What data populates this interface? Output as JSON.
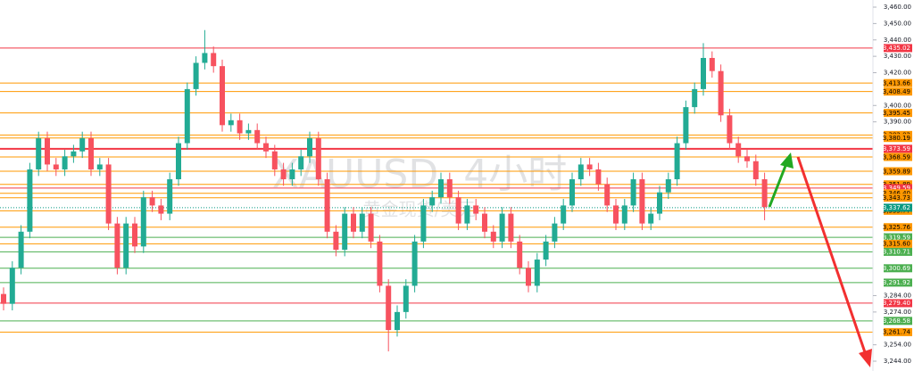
{
  "chart_data": {
    "type": "candlestick",
    "watermark": "XAUUSD, 4小时",
    "watermark_sub": "黄金现货/美元",
    "ylim": [
      3244,
      3460
    ],
    "yticks": [
      {
        "value": 3460,
        "label": "3,460.00"
      },
      {
        "value": 3450,
        "label": "3,450.00"
      },
      {
        "value": 3440,
        "label": "3,440.00"
      },
      {
        "value": 3430,
        "label": "3,430.00"
      },
      {
        "value": 3420,
        "label": "3,420.00"
      },
      {
        "value": 3400,
        "label": "3,400.00"
      },
      {
        "value": 3390,
        "label": "3,390.00"
      },
      {
        "value": 3284,
        "label": "3,284.00"
      },
      {
        "value": 3274,
        "label": "3,274.00"
      },
      {
        "value": 3254,
        "label": "3,254.00"
      },
      {
        "value": 3244,
        "label": "3,244.00"
      }
    ],
    "up_color": "#22ab94",
    "down_color": "#f7525f",
    "levels": [
      {
        "value": 3435.02,
        "label": "3,435.02",
        "color": "#f23645"
      },
      {
        "value": 3413.66,
        "label": "3,413.66",
        "color": "#ff9800"
      },
      {
        "value": 3408.49,
        "label": "3,408.49",
        "color": "#ff9800"
      },
      {
        "value": 3395.45,
        "label": "3,395.45",
        "color": "#ff9800"
      },
      {
        "value": 3382.02,
        "label": "3,382.02",
        "color": "#ff9800"
      },
      {
        "value": 3380.19,
        "label": "3,380.19",
        "color": "#ff9800"
      },
      {
        "value": 3373.59,
        "label": "3,373.59",
        "color": "#f23645"
      },
      {
        "value": 3368.59,
        "label": "3,368.59",
        "color": "#ff9800"
      },
      {
        "value": 3359.89,
        "label": "3,359.89",
        "color": "#ff9800"
      },
      {
        "value": 3351.89,
        "label": "3,351.89",
        "color": "#ff9800"
      },
      {
        "value": 3349.59,
        "label": "3,349.59",
        "color": "#f23645"
      },
      {
        "value": 3346.4,
        "label": "3,346.40",
        "color": "#ff9800"
      },
      {
        "value": 3343.73,
        "label": "3,343.73",
        "color": "#ff9800"
      },
      {
        "value": 3335.77,
        "label": "3,335.77",
        "color": "#ff9800"
      },
      {
        "value": 3325.76,
        "label": "3,325.76",
        "color": "#ff9800"
      },
      {
        "value": 3319.59,
        "label": "3,319.59",
        "color": "#4caf50"
      },
      {
        "value": 3315.6,
        "label": "3,315.60",
        "color": "#ff9800"
      },
      {
        "value": 3310.71,
        "label": "3,310.71",
        "color": "#4caf50"
      },
      {
        "value": 3300.69,
        "label": "3,300.69",
        "color": "#4caf50"
      },
      {
        "value": 3291.92,
        "label": "3,291.92",
        "color": "#4caf50"
      },
      {
        "value": 3279.4,
        "label": "3,279.40",
        "color": "#f23645"
      },
      {
        "value": 3268.58,
        "label": "3,268.58",
        "color": "#4caf50"
      },
      {
        "value": 3261.74,
        "label": "3,261.74",
        "color": "#ff9800"
      }
    ],
    "current_price": {
      "value": 3337.62,
      "label": "3,337.62",
      "color": "#089981"
    },
    "open": [
      3285,
      3279,
      3301,
      3323,
      3361,
      3380,
      3364,
      3361,
      3369,
      3372,
      3380,
      3361,
      3364,
      3328,
      3301,
      3328,
      3314,
      3344,
      3339,
      3334,
      3355,
      3377,
      3410,
      3426,
      3432,
      3424,
      3388,
      3391,
      3383,
      3385,
      3377,
      3372,
      3361,
      3355,
      3361,
      3369,
      3380,
      3355,
      3323,
      3312,
      3334,
      3323,
      3334,
      3317,
      3290,
      3263,
      3274,
      3290,
      3317,
      3339,
      3344,
      3355,
      3344,
      3328,
      3339,
      3334,
      3323,
      3317,
      3334,
      3317,
      3301,
      3290,
      3306,
      3317,
      3328,
      3339,
      3355,
      3364,
      3361,
      3352,
      3339,
      3328,
      3339,
      3355,
      3328,
      3334,
      3347,
      3355,
      3377,
      3399,
      3410,
      3429,
      3421,
      3394,
      3377,
      3369,
      3366,
      3355
    ],
    "high": [
      3289,
      3305,
      3327,
      3365,
      3384,
      3384,
      3368,
      3373,
      3376,
      3384,
      3384,
      3368,
      3368,
      3332,
      3332,
      3332,
      3348,
      3348,
      3343,
      3359,
      3381,
      3414,
      3430,
      3446,
      3436,
      3428,
      3395,
      3395,
      3389,
      3389,
      3381,
      3376,
      3365,
      3365,
      3373,
      3384,
      3384,
      3359,
      3327,
      3338,
      3338,
      3338,
      3338,
      3321,
      3294,
      3278,
      3294,
      3321,
      3343,
      3348,
      3359,
      3359,
      3348,
      3343,
      3343,
      3338,
      3327,
      3338,
      3338,
      3321,
      3305,
      3310,
      3321,
      3332,
      3343,
      3359,
      3368,
      3368,
      3365,
      3356,
      3343,
      3343,
      3359,
      3359,
      3338,
      3351,
      3359,
      3381,
      3403,
      3414,
      3438,
      3433,
      3425,
      3398,
      3381,
      3373,
      3370,
      3359
    ],
    "low": [
      3275,
      3275,
      3297,
      3319,
      3357,
      3360,
      3357,
      3357,
      3365,
      3368,
      3357,
      3357,
      3324,
      3297,
      3297,
      3310,
      3310,
      3335,
      3330,
      3330,
      3351,
      3373,
      3406,
      3422,
      3420,
      3384,
      3384,
      3379,
      3379,
      3373,
      3368,
      3357,
      3351,
      3351,
      3357,
      3365,
      3351,
      3319,
      3308,
      3308,
      3319,
      3319,
      3313,
      3286,
      3250,
      3259,
      3270,
      3286,
      3313,
      3335,
      3340,
      3340,
      3324,
      3324,
      3330,
      3319,
      3313,
      3313,
      3313,
      3297,
      3286,
      3286,
      3302,
      3313,
      3324,
      3335,
      3351,
      3357,
      3348,
      3335,
      3324,
      3324,
      3335,
      3324,
      3324,
      3330,
      3343,
      3351,
      3373,
      3395,
      3406,
      3417,
      3390,
      3373,
      3365,
      3362,
      3351,
      3330
    ],
    "close": [
      3279,
      3301,
      3323,
      3361,
      3380,
      3364,
      3361,
      3369,
      3372,
      3380,
      3361,
      3364,
      3328,
      3301,
      3328,
      3314,
      3344,
      3339,
      3334,
      3355,
      3377,
      3410,
      3426,
      3432,
      3424,
      3388,
      3391,
      3383,
      3385,
      3377,
      3372,
      3361,
      3355,
      3361,
      3369,
      3380,
      3355,
      3323,
      3312,
      3334,
      3323,
      3334,
      3317,
      3290,
      3263,
      3274,
      3290,
      3317,
      3339,
      3344,
      3355,
      3344,
      3328,
      3339,
      3334,
      3323,
      3317,
      3334,
      3317,
      3301,
      3290,
      3306,
      3317,
      3328,
      3339,
      3355,
      3364,
      3361,
      3352,
      3339,
      3328,
      3339,
      3355,
      3328,
      3334,
      3347,
      3355,
      3377,
      3399,
      3410,
      3429,
      3421,
      3394,
      3377,
      3369,
      3366,
      3355,
      3338
    ]
  }
}
